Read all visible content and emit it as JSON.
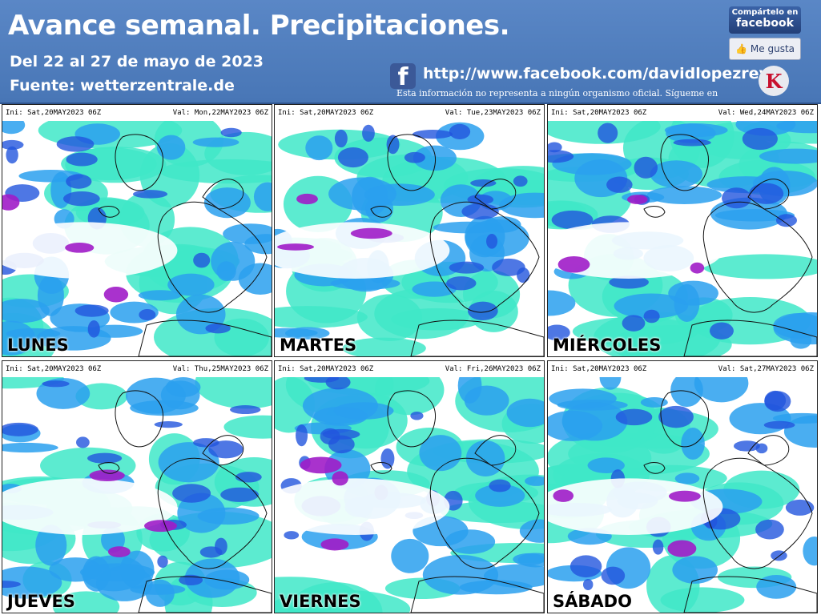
{
  "header": {
    "title": "Avance semanal. Precipitaciones.",
    "date_range": "Del 22 al 27 de mayo de 2023",
    "source": "Fuente: wetterzentrale.de",
    "url": "http://www.facebook.com/davidlopezrey",
    "disclaimer": "Esta información no representa a ningún organismo oficial. Sígueme en",
    "share_line1": "Compártelo en",
    "share_line2": "facebook",
    "like_label": "Me gusta"
  },
  "panels": [
    {
      "ini": "Ini: Sat,20MAY2023 06Z",
      "val": "Val: Mon,22MAY2023 06Z",
      "day": "LUNES"
    },
    {
      "ini": "Ini: Sat,20MAY2023 06Z",
      "val": "Val: Tue,23MAY2023 06Z",
      "day": "MARTES"
    },
    {
      "ini": "Ini: Sat,20MAY2023 06Z",
      "val": "Val: Wed,24MAY2023 06Z",
      "day": "MIÉRCOLES"
    },
    {
      "ini": "Ini: Sat,20MAY2023 06Z",
      "val": "Val: Thu,25MAY2023 06Z",
      "day": "JUEVES"
    },
    {
      "ini": "Ini: Sat,20MAY2023 06Z",
      "val": "Val: Fri,26MAY2023 06Z",
      "day": "VIERNES"
    },
    {
      "ini": "Ini: Sat,20MAY2023 06Z",
      "val": "Val: Sat,27MAY2023 06Z",
      "day": "SÁBADO"
    }
  ],
  "colors": {
    "header_bg": "#4f7fc0",
    "precip_light": "#3fe7c8",
    "precip_mid": "#2aa0ee",
    "precip_heavy": "#2255dd",
    "precip_extreme": "#a01cc8"
  },
  "icons": {
    "facebook": "facebook-icon",
    "like": "thumbs-up-icon",
    "logo": "k-logo-icon"
  }
}
